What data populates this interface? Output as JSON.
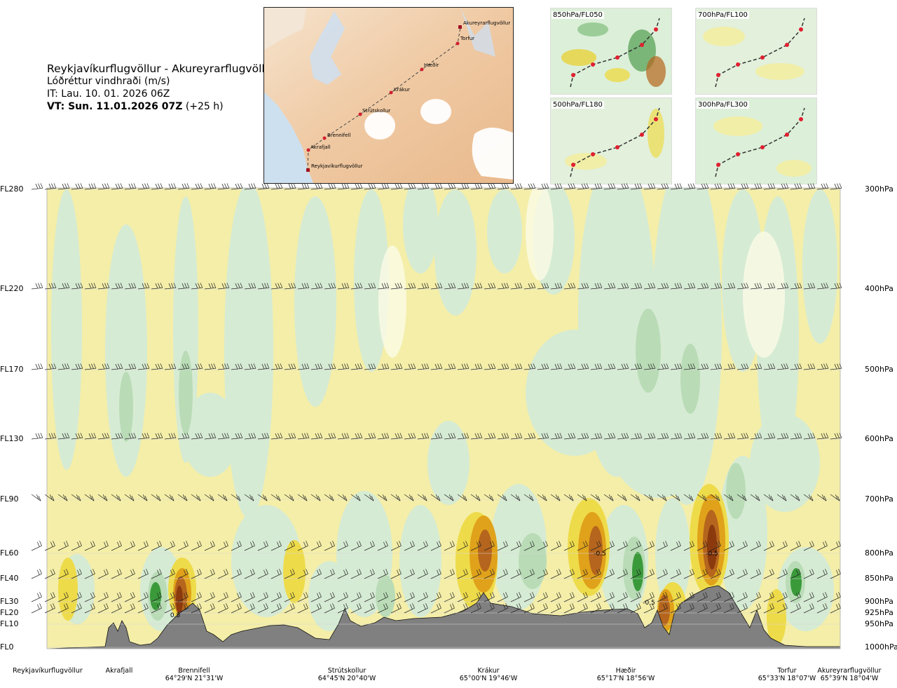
{
  "title": {
    "route": "Reykjavíkurflugvöllur - Akureyrarflugvöllur",
    "subtitle": "Lóðréttur vindhraði (m/s)",
    "init_time": "IT: Lau. 10. 01. 2026 06Z",
    "valid_label": "VT: Sun. 11.01.2026 07Z",
    "valid_offset": "(+25 h)"
  },
  "map": {
    "places": [
      "Akureyrarflugvöllur",
      "Torfur",
      "Hæðir",
      "Krákur",
      "Strútskollur",
      "Brennifell",
      "Akrafjall",
      "Reykjavíkurflugvöllur"
    ]
  },
  "minimaps": [
    "850hPa/FL050",
    "700hPa/FL100",
    "500hPa/FL180",
    "300hPa/FL300"
  ],
  "chart_data": {
    "type": "heatmap",
    "title": "Lóðréttur vindhraði (m/s)",
    "levels": [
      {
        "fl": "FL280",
        "hpa": "300hPa"
      },
      {
        "fl": "FL220",
        "hpa": "400hPa"
      },
      {
        "fl": "FL170",
        "hpa": "500hPa"
      },
      {
        "fl": "FL130",
        "hpa": "600hPa"
      },
      {
        "fl": "FL90",
        "hpa": "700hPa"
      },
      {
        "fl": "FL60",
        "hpa": "800hPa"
      },
      {
        "fl": "FL40",
        "hpa": "850hPa"
      },
      {
        "fl": "FL30",
        "hpa": "900hPa"
      },
      {
        "fl": "FL20",
        "hpa": "925hPa"
      },
      {
        "fl": "FL10",
        "hpa": "950hPa"
      },
      {
        "fl": "FL0",
        "hpa": "1000hPa"
      }
    ],
    "stations": [
      {
        "name": "Reykjavíkurflugvöllur",
        "coord": ""
      },
      {
        "name": "Akrafjall",
        "coord": ""
      },
      {
        "name": "Brennifell",
        "coord": "64°29'N 21°31'W"
      },
      {
        "name": "Strútskollur",
        "coord": "64°45'N 20°40'W"
      },
      {
        "name": "Krákur",
        "coord": "65°00'N 19°46'W"
      },
      {
        "name": "Hæðir",
        "coord": "65°17'N 18°56'W"
      },
      {
        "name": "Torfur",
        "coord": "65°33'N 18°07'W"
      },
      {
        "name": "Akureyrarflugvöllur",
        "coord": "65°39'N 18°04'W"
      }
    ],
    "contour_labels": [
      "-0.5",
      "-0.5",
      "-0.5",
      "0.8"
    ],
    "colors": {
      "sink_light": "#f3eda2",
      "sink_mid": "#eedb4a",
      "sink_strong": "#e0a21a",
      "sink_max": "#b5651d",
      "sink_extreme": "#8b3a0e",
      "rise_light": "#d6ebd4",
      "rise_mid": "#b9dcb6",
      "rise_strong": "#8cc48a",
      "rise_max": "#3a9a3a",
      "neutral": "#fbfbe6",
      "terrain": "#808080"
    }
  }
}
